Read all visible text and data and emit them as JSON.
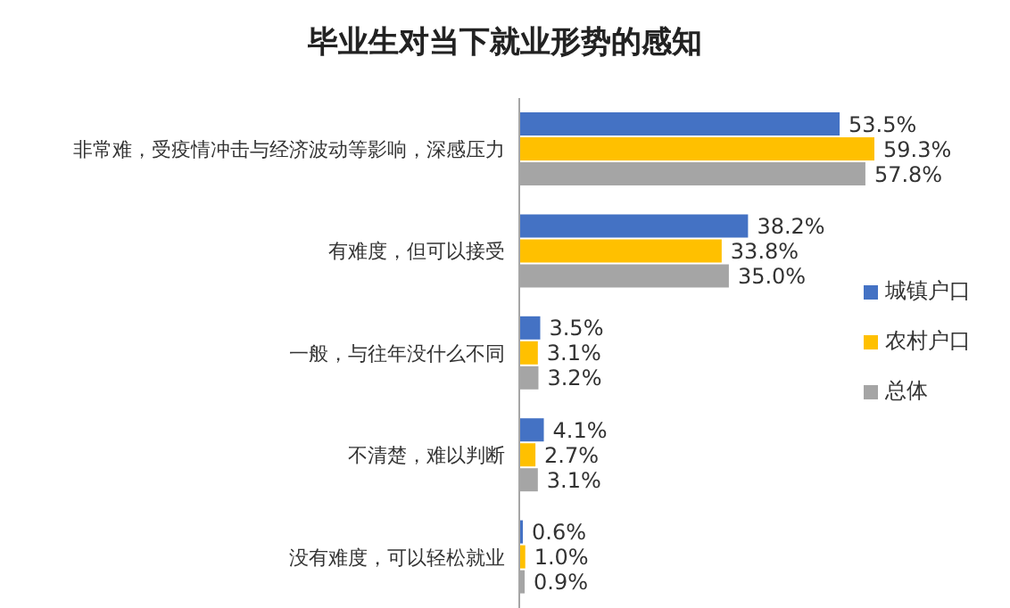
{
  "chart_data": {
    "type": "bar",
    "orientation": "horizontal",
    "title": "毕业生对当下就业形势的感知",
    "categories": [
      "非常难，受疫情冲击与经济波动等影响，深感压力",
      "有难度，但可以接受",
      "一般，与往年没什么不同",
      "不清楚，难以判断",
      "没有难度，可以轻松就业"
    ],
    "series": [
      {
        "name": "城镇户口",
        "color": "#4472c4",
        "values": [
          53.5,
          38.2,
          3.5,
          4.1,
          0.6
        ],
        "value_labels": [
          "53.5%",
          "38.2%",
          "3.5%",
          "4.1%",
          "0.6%"
        ]
      },
      {
        "name": "农村户口",
        "color": "#ffc000",
        "values": [
          59.3,
          33.8,
          3.1,
          2.7,
          1.0
        ],
        "value_labels": [
          "59.3%",
          "33.8%",
          "3.1%",
          "2.7%",
          "1.0%"
        ]
      },
      {
        "name": "总体",
        "color": "#a5a5a5",
        "values": [
          57.8,
          35.0,
          3.2,
          3.1,
          0.9
        ],
        "value_labels": [
          "57.8%",
          "35.0%",
          "3.2%",
          "3.1%",
          "0.9%"
        ]
      }
    ],
    "legend": "right",
    "grid": false
  }
}
